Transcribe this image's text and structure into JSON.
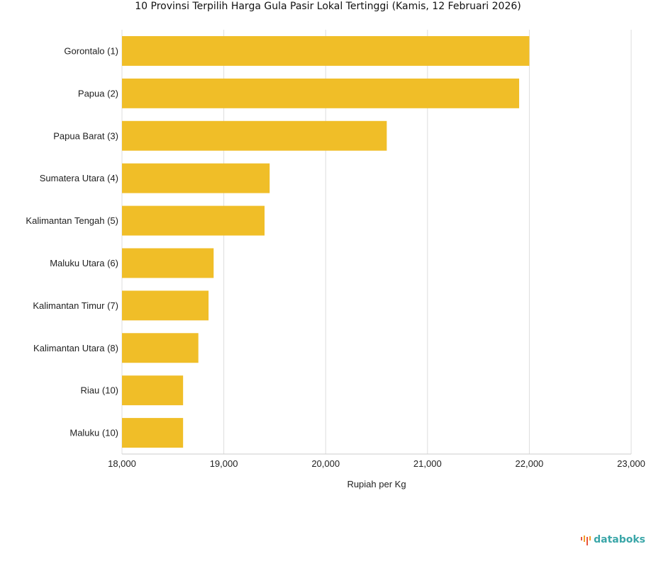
{
  "chart_data": {
    "type": "bar",
    "orientation": "horizontal",
    "title": "10 Provinsi Terpilih Harga Gula Pasir Lokal Tertinggi (Kamis, 12 Februari 2026)",
    "xlabel": "Rupiah per Kg",
    "ylabel": "",
    "categories": [
      "Gorontalo (1)",
      "Papua (2)",
      "Papua Barat (3)",
      "Sumatera Utara (4)",
      "Kalimantan Tengah (5)",
      "Maluku Utara (6)",
      "Kalimantan Timur (7)",
      "Kalimantan Utara (8)",
      "Riau (10)",
      "Maluku (10)"
    ],
    "values": [
      22000,
      21900,
      20600,
      19450,
      19400,
      18900,
      18850,
      18750,
      18600,
      18600
    ],
    "xlim": [
      18000,
      23000
    ],
    "xticks": [
      18000,
      19000,
      20000,
      21000,
      22000,
      23000
    ],
    "xtick_labels": [
      "18,000",
      "19,000",
      "20,000",
      "21,000",
      "22,000",
      "23,000"
    ],
    "grid": "vertical",
    "bar_color": "#F0BE28"
  },
  "brand": {
    "name": "databoks",
    "color": "#3AA6A8",
    "icon": "databoks-logo-icon"
  }
}
